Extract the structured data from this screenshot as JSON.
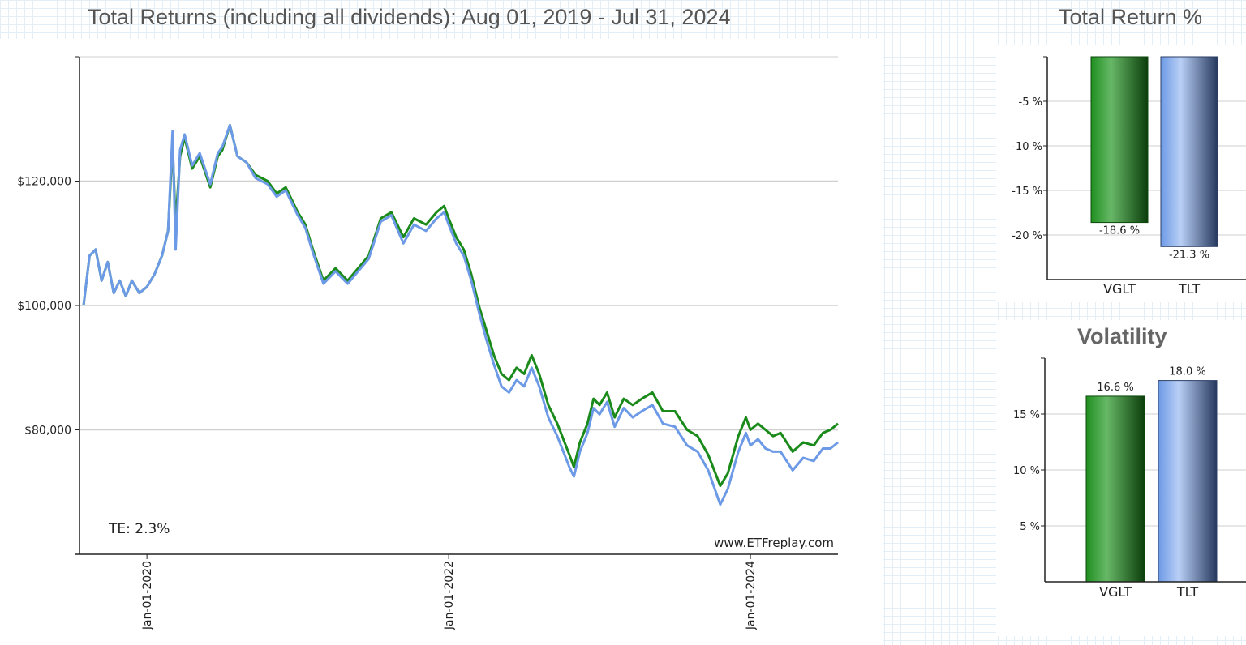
{
  "colors": {
    "vglt": "#1a8a1a",
    "tlt": "#6d9ae6",
    "grid": "#cfcfcf",
    "axis": "#222222"
  },
  "chart_data": [
    {
      "type": "line",
      "title": "Total Returns (including all dividends): Aug 01, 2019 - Jul 31, 2024",
      "y_ticks": [
        {
          "value": 80000,
          "label": "$80,000"
        },
        {
          "value": 100000,
          "label": "$100,000"
        },
        {
          "value": 120000,
          "label": "$120,000"
        }
      ],
      "ylim": [
        60000,
        140000
      ],
      "x_ticks": [
        {
          "value": 2020.0,
          "label": "Jan-01-2020"
        },
        {
          "value": 2022.0,
          "label": "Jan-01-2022"
        },
        {
          "value": 2024.0,
          "label": "Jan-01-2024"
        }
      ],
      "xlim": [
        2019.58,
        2024.58
      ],
      "annotation": "TE:  2.3%",
      "watermark": "www.ETFreplay.com",
      "series": [
        {
          "name": "VGLT",
          "color": "#1a8a1a",
          "points": [
            [
              2019.58,
              100000
            ],
            [
              2019.62,
              108000
            ],
            [
              2019.66,
              109000
            ],
            [
              2019.7,
              104000
            ],
            [
              2019.74,
              107000
            ],
            [
              2019.78,
              102000
            ],
            [
              2019.82,
              104000
            ],
            [
              2019.86,
              101500
            ],
            [
              2019.9,
              104000
            ],
            [
              2019.95,
              102000
            ],
            [
              2020.0,
              103000
            ],
            [
              2020.05,
              105000
            ],
            [
              2020.1,
              108000
            ],
            [
              2020.14,
              112000
            ],
            [
              2020.17,
              126000
            ],
            [
              2020.19,
              113000
            ],
            [
              2020.22,
              124000
            ],
            [
              2020.25,
              127000
            ],
            [
              2020.3,
              122000
            ],
            [
              2020.35,
              124000
            ],
            [
              2020.42,
              119000
            ],
            [
              2020.47,
              124000
            ],
            [
              2020.5,
              125000
            ],
            [
              2020.55,
              129000
            ],
            [
              2020.6,
              124000
            ],
            [
              2020.66,
              123000
            ],
            [
              2020.72,
              121000
            ],
            [
              2020.8,
              120000
            ],
            [
              2020.86,
              118000
            ],
            [
              2020.92,
              119000
            ],
            [
              2021.0,
              115000
            ],
            [
              2021.05,
              113000
            ],
            [
              2021.1,
              109000
            ],
            [
              2021.17,
              104000
            ],
            [
              2021.25,
              106000
            ],
            [
              2021.33,
              104000
            ],
            [
              2021.4,
              106000
            ],
            [
              2021.47,
              108000
            ],
            [
              2021.55,
              114000
            ],
            [
              2021.62,
              115000
            ],
            [
              2021.7,
              111000
            ],
            [
              2021.77,
              114000
            ],
            [
              2021.85,
              113000
            ],
            [
              2021.92,
              115000
            ],
            [
              2021.97,
              116000
            ],
            [
              2022.0,
              114000
            ],
            [
              2022.05,
              111000
            ],
            [
              2022.1,
              109000
            ],
            [
              2022.15,
              105000
            ],
            [
              2022.2,
              100000
            ],
            [
              2022.25,
              96000
            ],
            [
              2022.3,
              92000
            ],
            [
              2022.35,
              89000
            ],
            [
              2022.4,
              88000
            ],
            [
              2022.45,
              90000
            ],
            [
              2022.5,
              89000
            ],
            [
              2022.55,
              92000
            ],
            [
              2022.6,
              89000
            ],
            [
              2022.66,
              84000
            ],
            [
              2022.72,
              81000
            ],
            [
              2022.8,
              76000
            ],
            [
              2022.83,
              74000
            ],
            [
              2022.87,
              78000
            ],
            [
              2022.92,
              81000
            ],
            [
              2022.96,
              85000
            ],
            [
              2023.0,
              84000
            ],
            [
              2023.05,
              86000
            ],
            [
              2023.1,
              82000
            ],
            [
              2023.16,
              85000
            ],
            [
              2023.22,
              84000
            ],
            [
              2023.28,
              85000
            ],
            [
              2023.35,
              86000
            ],
            [
              2023.42,
              83000
            ],
            [
              2023.5,
              83000
            ],
            [
              2023.58,
              80000
            ],
            [
              2023.65,
              79000
            ],
            [
              2023.72,
              76000
            ],
            [
              2023.8,
              71000
            ],
            [
              2023.85,
              73000
            ],
            [
              2023.92,
              79000
            ],
            [
              2023.97,
              82000
            ],
            [
              2024.0,
              80000
            ],
            [
              2024.05,
              81000
            ],
            [
              2024.1,
              80000
            ],
            [
              2024.15,
              79000
            ],
            [
              2024.2,
              79500
            ],
            [
              2024.28,
              76500
            ],
            [
              2024.35,
              78000
            ],
            [
              2024.42,
              77500
            ],
            [
              2024.48,
              79500
            ],
            [
              2024.53,
              80000
            ],
            [
              2024.58,
              81000
            ]
          ]
        },
        {
          "name": "TLT",
          "color": "#6d9ae6",
          "points": [
            [
              2019.58,
              100000
            ],
            [
              2019.62,
              108000
            ],
            [
              2019.66,
              109000
            ],
            [
              2019.7,
              104000
            ],
            [
              2019.74,
              107000
            ],
            [
              2019.78,
              102000
            ],
            [
              2019.82,
              104000
            ],
            [
              2019.86,
              101500
            ],
            [
              2019.9,
              104000
            ],
            [
              2019.95,
              102000
            ],
            [
              2020.0,
              103000
            ],
            [
              2020.05,
              105000
            ],
            [
              2020.1,
              108000
            ],
            [
              2020.14,
              112000
            ],
            [
              2020.17,
              128000
            ],
            [
              2020.19,
              109000
            ],
            [
              2020.22,
              125000
            ],
            [
              2020.25,
              127500
            ],
            [
              2020.3,
              122500
            ],
            [
              2020.35,
              124500
            ],
            [
              2020.42,
              119500
            ],
            [
              2020.47,
              124500
            ],
            [
              2020.5,
              125500
            ],
            [
              2020.55,
              129000
            ],
            [
              2020.6,
              124000
            ],
            [
              2020.66,
              123000
            ],
            [
              2020.72,
              120500
            ],
            [
              2020.8,
              119500
            ],
            [
              2020.86,
              117500
            ],
            [
              2020.92,
              118500
            ],
            [
              2021.0,
              114500
            ],
            [
              2021.05,
              112500
            ],
            [
              2021.1,
              108500
            ],
            [
              2021.17,
              103500
            ],
            [
              2021.25,
              105500
            ],
            [
              2021.33,
              103500
            ],
            [
              2021.4,
              105500
            ],
            [
              2021.47,
              107500
            ],
            [
              2021.55,
              113500
            ],
            [
              2021.62,
              114500
            ],
            [
              2021.7,
              110000
            ],
            [
              2021.77,
              113000
            ],
            [
              2021.85,
              112000
            ],
            [
              2021.92,
              114000
            ],
            [
              2021.97,
              115000
            ],
            [
              2022.0,
              113000
            ],
            [
              2022.05,
              110000
            ],
            [
              2022.1,
              108000
            ],
            [
              2022.15,
              104000
            ],
            [
              2022.2,
              99000
            ],
            [
              2022.25,
              94500
            ],
            [
              2022.3,
              90500
            ],
            [
              2022.35,
              87000
            ],
            [
              2022.4,
              86000
            ],
            [
              2022.45,
              88000
            ],
            [
              2022.5,
              87000
            ],
            [
              2022.55,
              90000
            ],
            [
              2022.6,
              87000
            ],
            [
              2022.66,
              82000
            ],
            [
              2022.72,
              79000
            ],
            [
              2022.8,
              74000
            ],
            [
              2022.83,
              72500
            ],
            [
              2022.87,
              76500
            ],
            [
              2022.92,
              79500
            ],
            [
              2022.96,
              83500
            ],
            [
              2023.0,
              82500
            ],
            [
              2023.05,
              84500
            ],
            [
              2023.1,
              80500
            ],
            [
              2023.16,
              83500
            ],
            [
              2023.22,
              82000
            ],
            [
              2023.28,
              83000
            ],
            [
              2023.35,
              84000
            ],
            [
              2023.42,
              81000
            ],
            [
              2023.5,
              80500
            ],
            [
              2023.58,
              77500
            ],
            [
              2023.65,
              76500
            ],
            [
              2023.72,
              73500
            ],
            [
              2023.8,
              68000
            ],
            [
              2023.85,
              70500
            ],
            [
              2023.92,
              76500
            ],
            [
              2023.97,
              79500
            ],
            [
              2024.0,
              77500
            ],
            [
              2024.05,
              78500
            ],
            [
              2024.1,
              77000
            ],
            [
              2024.15,
              76500
            ],
            [
              2024.2,
              76500
            ],
            [
              2024.28,
              73500
            ],
            [
              2024.35,
              75500
            ],
            [
              2024.42,
              75000
            ],
            [
              2024.48,
              77000
            ],
            [
              2024.53,
              77000
            ],
            [
              2024.58,
              78000
            ]
          ]
        }
      ]
    },
    {
      "type": "bar",
      "title": "Total Return %",
      "categories": [
        "VGLT",
        "TLT"
      ],
      "values": [
        -18.6,
        -21.3
      ],
      "value_labels": [
        "-18.6 %",
        "-21.3 %"
      ],
      "colors": [
        "#1a8a1a",
        "#6d9ae6"
      ],
      "y_ticks": [
        {
          "value": -5,
          "label": "-5 %"
        },
        {
          "value": -10,
          "label": "-10 %"
        },
        {
          "value": -15,
          "label": "-15 %"
        },
        {
          "value": -20,
          "label": "-20 %"
        }
      ],
      "ylim": [
        -25,
        0
      ]
    },
    {
      "type": "bar",
      "title": "Volatility",
      "categories": [
        "VGLT",
        "TLT"
      ],
      "values": [
        16.6,
        18.0
      ],
      "value_labels": [
        "16.6 %",
        "18.0 %"
      ],
      "colors": [
        "#1a8a1a",
        "#6d9ae6"
      ],
      "y_ticks": [
        {
          "value": 5,
          "label": "5 %"
        },
        {
          "value": 10,
          "label": "10 %"
        },
        {
          "value": 15,
          "label": "15 %"
        }
      ],
      "ylim": [
        0,
        20
      ]
    }
  ]
}
